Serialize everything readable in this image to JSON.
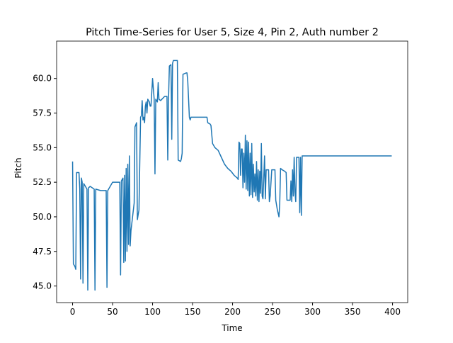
{
  "chart_data": {
    "type": "line",
    "title": "Pitch Time-Series for User 5, Size 4, Pin 2, Auth number 2",
    "x_label": "Time",
    "y_label": "Pitch",
    "x": [
      0,
      1,
      3,
      4,
      5,
      8,
      9,
      10,
      11,
      12,
      13,
      14,
      16,
      18,
      19,
      20,
      22,
      27,
      28,
      29,
      35,
      42,
      43,
      44,
      47,
      50,
      53,
      57,
      59,
      60,
      61,
      63,
      64,
      65,
      66,
      67,
      68,
      69,
      70,
      71,
      72,
      73,
      75,
      77,
      78,
      80,
      81,
      83,
      85,
      86,
      87,
      88,
      89,
      90,
      91,
      92,
      93,
      94,
      96,
      97,
      98,
      100,
      102,
      103,
      104,
      106,
      107,
      108,
      110,
      115,
      118,
      119,
      120,
      121,
      123,
      124,
      125,
      126,
      131,
      132,
      135,
      136,
      137,
      138,
      142,
      143,
      144,
      145,
      146,
      147,
      148,
      155,
      163,
      168,
      169,
      172,
      173,
      175,
      178,
      182,
      186,
      190,
      194,
      198,
      202,
      206,
      207,
      208,
      209,
      210,
      211,
      212,
      213,
      214,
      215,
      216,
      217,
      218,
      219,
      220,
      221,
      222,
      223,
      224,
      225,
      226,
      227,
      228,
      229,
      230,
      231,
      232,
      233,
      234,
      235,
      236,
      237,
      238,
      240,
      241,
      242,
      245,
      246,
      247,
      249,
      253,
      254,
      256,
      258,
      259,
      260,
      262,
      265,
      267,
      268,
      272,
      273,
      274,
      275,
      276,
      277,
      278,
      279,
      280,
      283,
      284,
      285,
      286,
      287,
      399
    ],
    "series": [
      {
        "name": "Pitch",
        "color": "#1f77b4",
        "values": [
          54.0,
          46.6,
          46.4,
          46.2,
          53.2,
          53.2,
          52.0,
          45.5,
          52.8,
          52.5,
          45.2,
          52.4,
          52.2,
          52.0,
          44.7,
          52.1,
          52.2,
          52.0,
          44.7,
          52.0,
          51.9,
          51.9,
          44.9,
          51.9,
          52.2,
          52.5,
          52.5,
          52.5,
          52.5,
          45.8,
          52.6,
          52.8,
          46.7,
          53.0,
          46.8,
          53.5,
          47.5,
          53.8,
          48.0,
          54.4,
          47.9,
          49.0,
          50.0,
          51.0,
          56.5,
          56.8,
          49.8,
          50.5,
          57.2,
          57.3,
          58.4,
          57.0,
          57.2,
          56.8,
          58.0,
          58.3,
          57.5,
          58.5,
          58.3,
          58.0,
          58.0,
          60.0,
          58.5,
          53.1,
          58.5,
          58.3,
          59.7,
          58.5,
          58.4,
          58.7,
          58.7,
          54.1,
          58.6,
          60.9,
          61.0,
          55.6,
          61.1,
          61.3,
          61.3,
          54.1,
          54.0,
          54.2,
          54.6,
          60.3,
          60.4,
          60.4,
          59.8,
          58.5,
          57.2,
          57.0,
          57.2,
          57.2,
          57.2,
          57.2,
          56.8,
          56.7,
          56.6,
          55.3,
          55.0,
          54.8,
          54.3,
          53.8,
          53.5,
          53.3,
          53.0,
          52.8,
          52.7,
          55.4,
          55.3,
          53.0,
          54.9,
          54.9,
          52.1,
          54.6,
          52.5,
          55.9,
          52.0,
          55.5,
          51.9,
          55.4,
          51.5,
          54.6,
          51.6,
          55.3,
          51.4,
          53.8,
          51.8,
          53.1,
          51.5,
          54.0,
          51.2,
          53.4,
          51.1,
          53.3,
          51.7,
          55.3,
          51.5,
          51.3,
          54.4,
          51.3,
          53.4,
          53.4,
          51.1,
          51.5,
          53.4,
          53.4,
          51.2,
          50.5,
          50.0,
          51.0,
          53.5,
          53.4,
          53.3,
          53.2,
          51.2,
          51.2,
          52.6,
          51.1,
          53.4,
          51.5,
          54.3,
          51.8,
          51.1,
          54.3,
          54.3,
          50.3,
          54.3,
          50.1,
          54.4,
          54.4
        ]
      }
    ],
    "xlim": [
      -19.95,
      418.95
    ],
    "xticks": [
      0,
      50,
      100,
      150,
      200,
      250,
      300,
      350,
      400
    ],
    "ylim": [
      43.8,
      62.7
    ],
    "yticks": [
      {
        "value": 45,
        "label": "45.0"
      },
      47.5,
      {
        "value": 50,
        "label": "50.0"
      },
      52.5,
      {
        "value": 55,
        "label": "55.0"
      },
      57.5,
      {
        "value": 60,
        "label": "60.0"
      }
    ],
    "grid": false
  }
}
